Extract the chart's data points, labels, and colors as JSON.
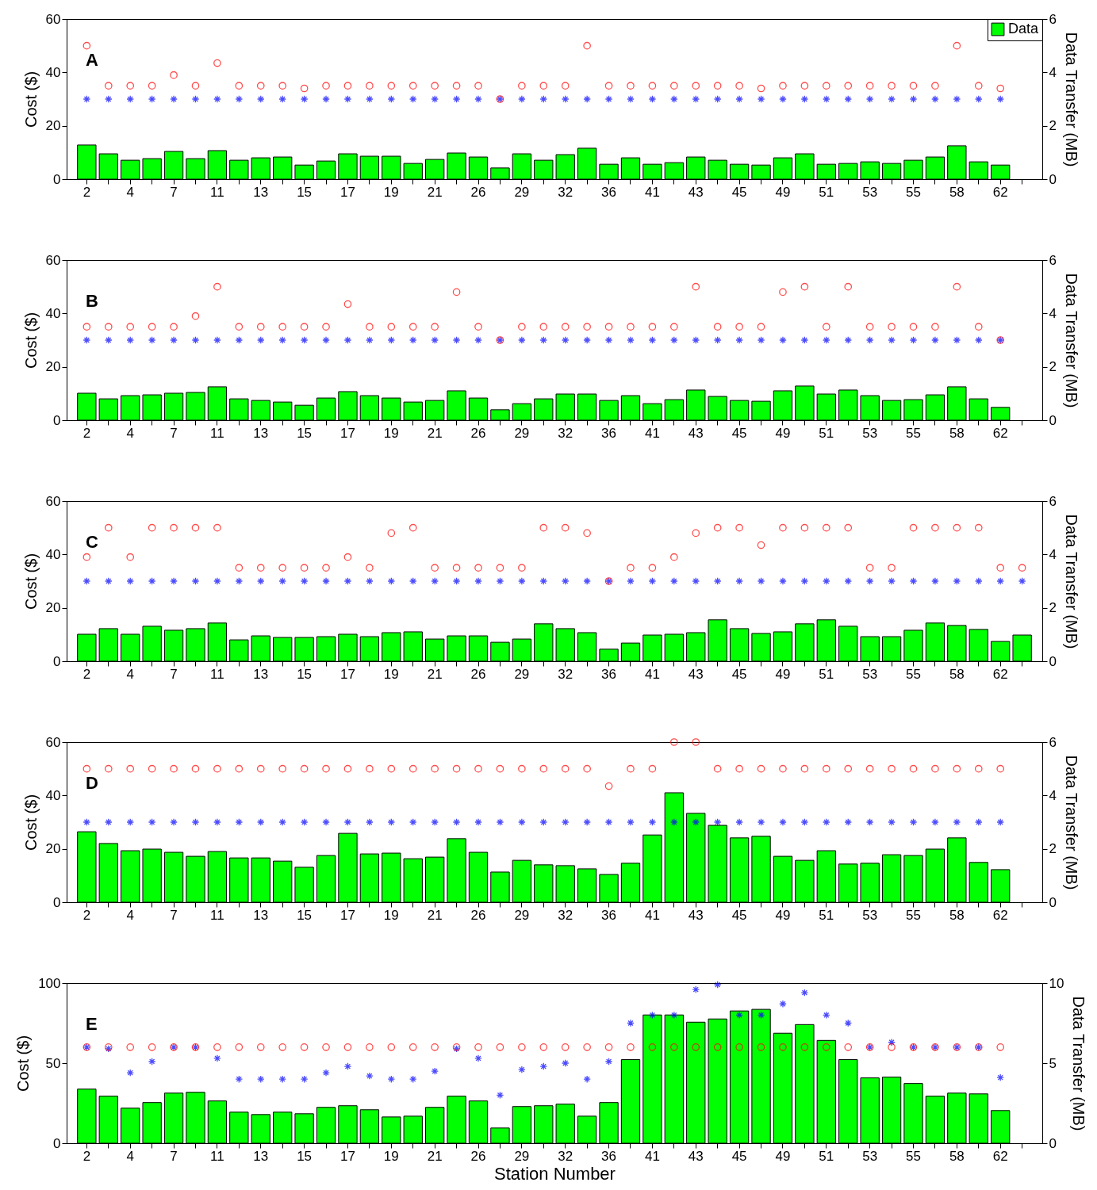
{
  "chart_data": [
    {
      "type": "bar",
      "annotations": [
        "A"
      ],
      "ylabel": "Cost ($)",
      "y2label": "Data Transfer (MB)",
      "ylim": [
        0,
        60
      ],
      "yticks": [
        0,
        20,
        40,
        60
      ],
      "y2lim": [
        0,
        6
      ],
      "y2ticks": [
        0,
        2,
        4,
        6
      ],
      "grid": false,
      "legend": "top right",
      "categories": [
        "2",
        null,
        "4",
        null,
        "7",
        null,
        "11",
        null,
        "13",
        null,
        "15",
        null,
        "17",
        null,
        "19",
        null,
        "21",
        null,
        "26",
        null,
        "29",
        null,
        "32",
        null,
        "36",
        null,
        "41",
        null,
        "43",
        null,
        "45",
        null,
        "49",
        null,
        "51",
        null,
        "53",
        null,
        "55",
        null,
        "58",
        null,
        "62",
        null
      ],
      "series": [
        {
          "name": "Data",
          "axis": "y2",
          "color": "#00ff00",
          "values": [
            1.28,
            0.95,
            0.71,
            0.77,
            1.04,
            0.77,
            1.07,
            0.71,
            0.8,
            0.83,
            0.53,
            0.68,
            0.95,
            0.86,
            0.86,
            0.59,
            0.74,
            0.98,
            0.83,
            0.42,
            0.95,
            0.71,
            0.92,
            1.16,
            0.56,
            0.8,
            0.56,
            0.62,
            0.83,
            0.71,
            0.56,
            0.53,
            0.8,
            0.95,
            0.56,
            0.59,
            0.65,
            0.59,
            0.71,
            0.83,
            1.25,
            0.65,
            0.53,
            null
          ]
        },
        {
          "type": "scatter",
          "marker": "cross",
          "color": "#0000ff",
          "values": [
            30,
            30,
            30,
            30,
            30,
            30,
            30,
            30,
            30,
            30,
            30,
            30,
            30,
            30,
            30,
            30,
            30,
            30,
            30,
            30,
            30,
            30,
            30,
            30,
            30,
            30,
            30,
            30,
            30,
            30,
            30,
            30,
            30,
            30,
            30,
            30,
            30,
            30,
            30,
            30,
            30,
            30,
            30,
            null
          ]
        },
        {
          "type": "scatter",
          "marker": "circle",
          "color": "#ff0000",
          "values": [
            50,
            35,
            35,
            35,
            39,
            35,
            43.5,
            35,
            35,
            35,
            34,
            35,
            35,
            35,
            35,
            35,
            35,
            35,
            35,
            30,
            35,
            35,
            35,
            50,
            35,
            35,
            35,
            35,
            35,
            35,
            35,
            34,
            35,
            35,
            35,
            35,
            35,
            35,
            35,
            35,
            50,
            35,
            34,
            null
          ]
        }
      ]
    },
    {
      "type": "bar",
      "annotations": [
        "B"
      ],
      "ylabel": "Cost ($)",
      "y2label": "Data Transfer (MB)",
      "ylim": [
        0,
        60
      ],
      "yticks": [
        0,
        20,
        40,
        60
      ],
      "y2lim": [
        0,
        6
      ],
      "y2ticks": [
        0,
        2,
        4,
        6
      ],
      "grid": false,
      "categories": [
        "2",
        null,
        "4",
        null,
        "7",
        null,
        "11",
        null,
        "13",
        null,
        "15",
        null,
        "17",
        null,
        "19",
        null,
        "21",
        null,
        "26",
        null,
        "29",
        null,
        "32",
        null,
        "36",
        null,
        "41",
        null,
        "43",
        null,
        "45",
        null,
        "49",
        null,
        "51",
        null,
        "53",
        null,
        "55",
        null,
        "58",
        null,
        "62",
        null
      ],
      "series": [
        {
          "axis": "y2",
          "color": "#00ff00",
          "values": [
            1.01,
            0.8,
            0.92,
            0.95,
            1.01,
            1.04,
            1.25,
            0.8,
            0.74,
            0.68,
            0.56,
            0.83,
            1.07,
            0.92,
            0.83,
            0.68,
            0.74,
            1.1,
            0.83,
            0.39,
            0.62,
            0.8,
            0.98,
            0.98,
            0.74,
            0.92,
            0.62,
            0.77,
            1.13,
            0.89,
            0.74,
            0.71,
            1.1,
            1.28,
            0.98,
            1.13,
            0.92,
            0.74,
            0.77,
            0.95,
            1.25,
            0.8,
            0.48,
            null
          ]
        },
        {
          "type": "scatter",
          "marker": "cross",
          "color": "#0000ff",
          "values": [
            30,
            30,
            30,
            30,
            30,
            30,
            30,
            30,
            30,
            30,
            30,
            30,
            30,
            30,
            30,
            30,
            30,
            30,
            30,
            30,
            30,
            30,
            30,
            30,
            30,
            30,
            30,
            30,
            30,
            30,
            30,
            30,
            30,
            30,
            30,
            30,
            30,
            30,
            30,
            30,
            30,
            30,
            30,
            null
          ]
        },
        {
          "type": "scatter",
          "marker": "circle",
          "color": "#ff0000",
          "values": [
            35,
            35,
            35,
            35,
            35,
            39,
            50,
            35,
            35,
            35,
            35,
            35,
            43.5,
            35,
            35,
            35,
            35,
            48,
            35,
            30,
            35,
            35,
            35,
            35,
            35,
            35,
            35,
            35,
            50,
            35,
            35,
            35,
            48,
            50,
            35,
            50,
            35,
            35,
            35,
            35,
            50,
            35,
            30,
            null
          ]
        }
      ]
    },
    {
      "type": "bar",
      "annotations": [
        "C"
      ],
      "ylabel": "Cost ($)",
      "y2label": "Data Transfer (MB)",
      "ylim": [
        0,
        60
      ],
      "yticks": [
        0,
        20,
        40,
        60
      ],
      "y2lim": [
        0,
        6
      ],
      "y2ticks": [
        0,
        2,
        4,
        6
      ],
      "grid": false,
      "categories": [
        "2",
        null,
        "4",
        null,
        "7",
        null,
        "11",
        null,
        "13",
        null,
        "15",
        null,
        "17",
        null,
        "19",
        null,
        "21",
        null,
        "26",
        null,
        "29",
        null,
        "32",
        null,
        "36",
        null,
        "41",
        null,
        "43",
        null,
        "45",
        null,
        "49",
        null,
        "51",
        null,
        "53",
        null,
        "55",
        null,
        "58",
        null,
        "62",
        null
      ],
      "series": [
        {
          "axis": "y2",
          "color": "#00ff00",
          "values": [
            1.01,
            1.22,
            1.01,
            1.31,
            1.16,
            1.22,
            1.43,
            0.8,
            0.95,
            0.89,
            0.89,
            0.92,
            1.01,
            0.92,
            1.07,
            1.1,
            0.83,
            0.95,
            0.95,
            0.71,
            0.83,
            1.4,
            1.22,
            1.07,
            0.45,
            0.68,
            0.98,
            1.01,
            1.07,
            1.55,
            1.22,
            1.04,
            1.1,
            1.4,
            1.55,
            1.31,
            0.92,
            0.92,
            1.16,
            1.43,
            1.34,
            1.19,
            0.74,
            0.98
          ]
        },
        {
          "type": "scatter",
          "marker": "cross",
          "color": "#0000ff",
          "values": [
            30,
            30,
            30,
            30,
            30,
            30,
            30,
            30,
            30,
            30,
            30,
            30,
            30,
            30,
            30,
            30,
            30,
            30,
            30,
            30,
            30,
            30,
            30,
            30,
            30,
            30,
            30,
            30,
            30,
            30,
            30,
            30,
            30,
            30,
            30,
            30,
            30,
            30,
            30,
            30,
            30,
            30,
            30,
            30
          ]
        },
        {
          "type": "scatter",
          "marker": "circle",
          "color": "#ff0000",
          "values": [
            39,
            50,
            39,
            50,
            50,
            50,
            50,
            35,
            35,
            35,
            35,
            35,
            39,
            35,
            48,
            50,
            35,
            35,
            35,
            35,
            35,
            50,
            50,
            48,
            30,
            35,
            35,
            39,
            48,
            50,
            50,
            43.5,
            50,
            50,
            50,
            50,
            35,
            35,
            50,
            50,
            50,
            50,
            35,
            35
          ]
        }
      ]
    },
    {
      "type": "bar",
      "annotations": [
        "D"
      ],
      "ylabel": "Cost ($)",
      "y2label": "Data Transfer (MB)",
      "ylim": [
        0,
        60
      ],
      "yticks": [
        0,
        20,
        40,
        60
      ],
      "y2lim": [
        0,
        6
      ],
      "y2ticks": [
        0,
        2,
        4,
        6
      ],
      "grid": false,
      "categories": [
        "2",
        null,
        "4",
        null,
        "7",
        null,
        "11",
        null,
        "13",
        null,
        "15",
        null,
        "17",
        null,
        "19",
        null,
        "21",
        null,
        "26",
        null,
        "29",
        null,
        "32",
        null,
        "36",
        null,
        "41",
        null,
        "43",
        null,
        "45",
        null,
        "49",
        null,
        "51",
        null,
        "53",
        null,
        "55",
        null,
        "58",
        null,
        "62",
        null
      ],
      "series": [
        {
          "axis": "y2",
          "color": "#00ff00",
          "values": [
            2.64,
            2.2,
            1.93,
            1.99,
            1.87,
            1.72,
            1.9,
            1.66,
            1.66,
            1.54,
            1.31,
            1.75,
            2.58,
            1.81,
            1.84,
            1.63,
            1.69,
            2.38,
            1.87,
            1.13,
            1.57,
            1.4,
            1.37,
            1.25,
            1.04,
            1.46,
            2.52,
            4.1,
            3.33,
            2.88,
            2.41,
            2.47,
            1.72,
            1.57,
            1.93,
            1.43,
            1.46,
            1.78,
            1.75,
            1.99,
            2.41,
            1.49,
            1.22,
            null
          ]
        },
        {
          "type": "scatter",
          "marker": "cross",
          "color": "#0000ff",
          "values": [
            30,
            30,
            30,
            30,
            30,
            30,
            30,
            30,
            30,
            30,
            30,
            30,
            30,
            30,
            30,
            30,
            30,
            30,
            30,
            30,
            30,
            30,
            30,
            30,
            30,
            30,
            30,
            30,
            30,
            30,
            30,
            30,
            30,
            30,
            30,
            30,
            30,
            30,
            30,
            30,
            30,
            30,
            30,
            null
          ]
        },
        {
          "type": "scatter",
          "marker": "circle",
          "color": "#ff0000",
          "values": [
            50,
            50,
            50,
            50,
            50,
            50,
            50,
            50,
            50,
            50,
            50,
            50,
            50,
            50,
            50,
            50,
            50,
            50,
            50,
            50,
            50,
            50,
            50,
            50,
            43.5,
            50,
            50,
            60,
            60,
            50,
            50,
            50,
            50,
            50,
            50,
            50,
            50,
            50,
            50,
            50,
            50,
            50,
            50,
            null
          ]
        }
      ]
    },
    {
      "type": "bar",
      "annotations": [
        "E"
      ],
      "xlabel": "Station Number",
      "ylabel": "Cost ($)",
      "y2label": "Data Transfer (MB)",
      "ylim": [
        0,
        100
      ],
      "yticks": [
        0,
        50,
        100
      ],
      "y2lim": [
        0,
        10
      ],
      "y2ticks": [
        0,
        5,
        10
      ],
      "grid": false,
      "categories": [
        "2",
        null,
        "4",
        null,
        "7",
        null,
        "11",
        null,
        "13",
        null,
        "15",
        null,
        "17",
        null,
        "19",
        null,
        "21",
        null,
        "26",
        null,
        "29",
        null,
        "32",
        null,
        "36",
        null,
        "41",
        null,
        "43",
        null,
        "45",
        null,
        "49",
        null,
        "51",
        null,
        "53",
        null,
        "55",
        null,
        "58",
        null,
        "62",
        null
      ],
      "series": [
        {
          "axis": "y2",
          "color": "#00ff00",
          "values": [
            3.38,
            2.94,
            2.19,
            2.54,
            3.13,
            3.18,
            2.64,
            1.94,
            1.79,
            1.94,
            1.84,
            2.24,
            2.34,
            2.09,
            1.64,
            1.69,
            2.24,
            2.94,
            2.64,
            0.95,
            2.29,
            2.34,
            2.44,
            1.69,
            2.54,
            5.22,
            8.01,
            8.01,
            7.56,
            7.76,
            8.26,
            8.36,
            6.87,
            7.41,
            6.42,
            5.22,
            4.08,
            4.13,
            3.73,
            2.94,
            3.13,
            3.08,
            2.04,
            null
          ]
        },
        {
          "type": "scatter",
          "marker": "cross",
          "color": "#0000ff",
          "values": [
            60,
            59,
            44,
            51,
            60,
            60,
            53,
            40,
            40,
            40,
            40,
            44,
            48,
            42,
            40,
            40,
            45,
            59,
            53,
            30,
            46,
            48,
            50,
            40,
            51,
            75,
            80,
            80,
            96,
            99,
            80,
            80,
            87,
            94,
            80,
            75,
            60,
            63,
            60,
            60,
            60,
            60,
            41,
            null
          ]
        },
        {
          "type": "scatter",
          "marker": "circle",
          "color": "#ff0000",
          "values": [
            60,
            60,
            60,
            60,
            60,
            60,
            60,
            60,
            60,
            60,
            60,
            60,
            60,
            60,
            60,
            60,
            60,
            60,
            60,
            60,
            60,
            60,
            60,
            60,
            60,
            60,
            60,
            60,
            60,
            60,
            60,
            60,
            60,
            60,
            60,
            60,
            60,
            60,
            60,
            60,
            60,
            60,
            60,
            null
          ]
        }
      ]
    }
  ]
}
